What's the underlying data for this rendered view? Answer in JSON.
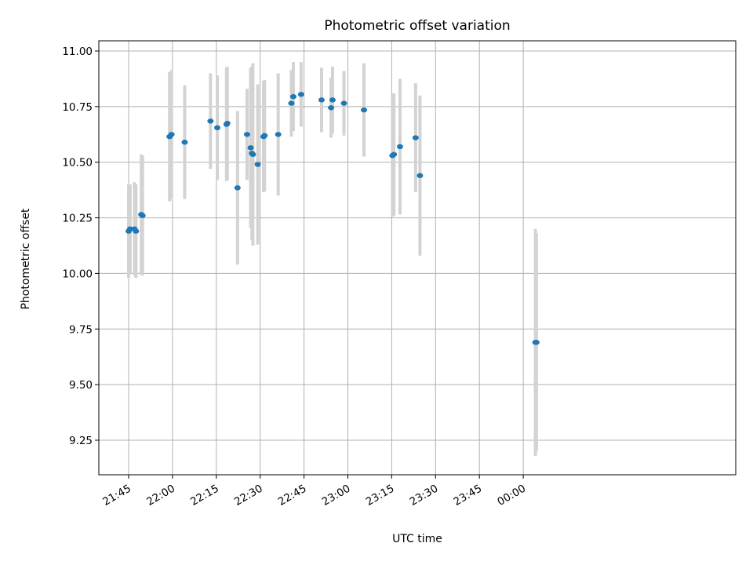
{
  "chart_data": {
    "type": "scatter",
    "title": "Photometric offset variation",
    "xlabel": "UTC time",
    "ylabel": "Photometric offset",
    "x_axis": "time",
    "y_ticks": [
      "9.25",
      "9.50",
      "9.75",
      "10.00",
      "10.25",
      "10.50",
      "10.75",
      "11.00"
    ],
    "x_ticks": [
      "21:45",
      "22:00",
      "22:15",
      "22:30",
      "22:45",
      "23:00",
      "23:15",
      "23:30",
      "23:45",
      "00:00"
    ],
    "grid": true,
    "colors": {
      "point": "#1f77b4",
      "errorbar": "#d3d3d3",
      "grid": "#b0b0b0"
    },
    "points": [
      {
        "t": "21:45:00",
        "y": 10.19,
        "err": 0.21
      },
      {
        "t": "21:45:30",
        "y": 10.2,
        "err": 0.2
      },
      {
        "t": "21:47:00",
        "y": 10.2,
        "err": 0.21
      },
      {
        "t": "21:47:30",
        "y": 10.19,
        "err": 0.21
      },
      {
        "t": "21:49:20",
        "y": 10.265,
        "err": 0.27
      },
      {
        "t": "21:49:45",
        "y": 10.26,
        "err": 0.27
      },
      {
        "t": "21:59:00",
        "y": 10.615,
        "err": 0.29
      },
      {
        "t": "21:59:40",
        "y": 10.625,
        "err": 0.29
      },
      {
        "t": "22:04:10",
        "y": 10.59,
        "err": 0.255
      },
      {
        "t": "22:13:00",
        "y": 10.685,
        "err": 0.215
      },
      {
        "t": "22:15:20",
        "y": 10.655,
        "err": 0.235
      },
      {
        "t": "22:18:30",
        "y": 10.67,
        "err": 0.255
      },
      {
        "t": "22:18:45",
        "y": 10.675,
        "err": 0.255
      },
      {
        "t": "22:22:15",
        "y": 10.385,
        "err": 0.345
      },
      {
        "t": "22:25:30",
        "y": 10.625,
        "err": 0.205
      },
      {
        "t": "22:26:45",
        "y": 10.565,
        "err": 0.36
      },
      {
        "t": "22:27:10",
        "y": 10.54,
        "err": 0.39
      },
      {
        "t": "22:27:30",
        "y": 10.535,
        "err": 0.41
      },
      {
        "t": "22:29:10",
        "y": 10.49,
        "err": 0.36
      },
      {
        "t": "22:31:10",
        "y": 10.615,
        "err": 0.25
      },
      {
        "t": "22:31:30",
        "y": 10.62,
        "err": 0.25
      },
      {
        "t": "22:36:10",
        "y": 10.625,
        "err": 0.275
      },
      {
        "t": "22:40:40",
        "y": 10.765,
        "err": 0.15
      },
      {
        "t": "22:41:20",
        "y": 10.795,
        "err": 0.155
      },
      {
        "t": "22:44:00",
        "y": 10.805,
        "err": 0.145
      },
      {
        "t": "22:51:00",
        "y": 10.78,
        "err": 0.145
      },
      {
        "t": "22:54:15",
        "y": 10.745,
        "err": 0.135
      },
      {
        "t": "22:54:45",
        "y": 10.78,
        "err": 0.15
      },
      {
        "t": "22:58:40",
        "y": 10.765,
        "err": 0.145
      },
      {
        "t": "23:05:30",
        "y": 10.735,
        "err": 0.21
      },
      {
        "t": "23:15:15",
        "y": 10.53,
        "err": 0.275
      },
      {
        "t": "23:15:45",
        "y": 10.535,
        "err": 0.275
      },
      {
        "t": "23:17:50",
        "y": 10.57,
        "err": 0.305
      },
      {
        "t": "23:23:10",
        "y": 10.61,
        "err": 0.245
      },
      {
        "t": "23:24:40",
        "y": 10.44,
        "err": 0.36
      },
      {
        "t": "00:04:10",
        "y": 9.69,
        "err": 0.51
      },
      {
        "t": "00:04:30",
        "y": 9.69,
        "err": 0.49
      }
    ]
  }
}
